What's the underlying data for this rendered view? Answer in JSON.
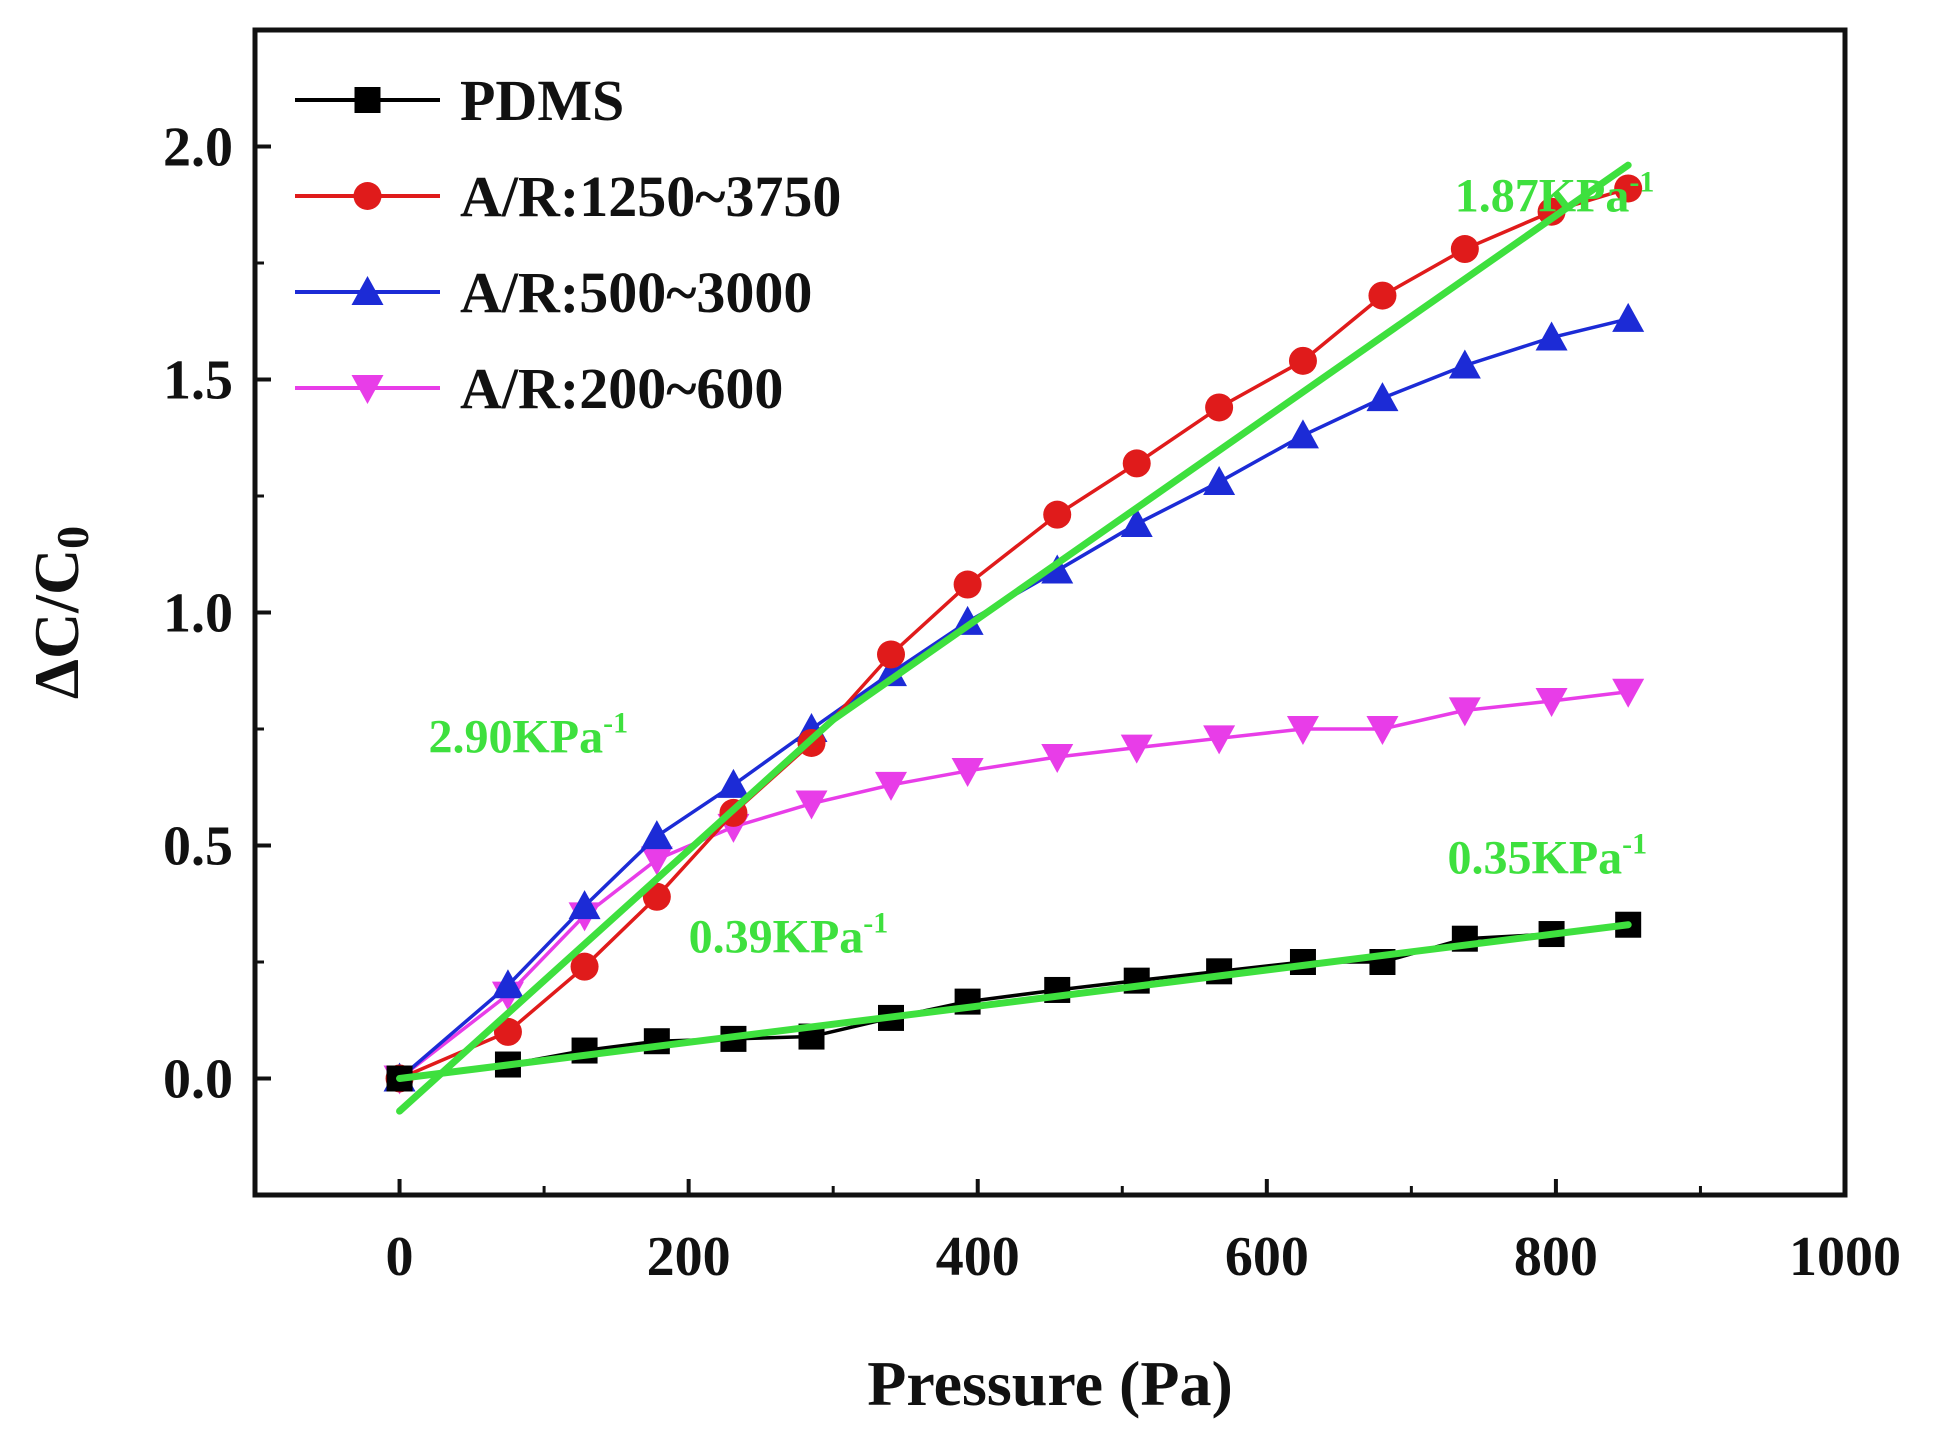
{
  "chart_data": {
    "type": "line",
    "title": "",
    "xlabel": "Pressure (Pa)",
    "ylabel_main": "ΔC/C",
    "ylabel_sub": "0",
    "xlim": [
      -100,
      1000
    ],
    "ylim": [
      -0.25,
      2.25
    ],
    "xticks": [
      0,
      200,
      400,
      600,
      800,
      1000
    ],
    "xtick_labels": [
      "0",
      "200",
      "400",
      "600",
      "800",
      "1000"
    ],
    "yticks": [
      0.0,
      0.5,
      1.0,
      1.5,
      2.0
    ],
    "ytick_labels": [
      "0.0",
      "0.5",
      "1.0",
      "1.5",
      "2.0"
    ],
    "grid": false,
    "legend_position": "top-left",
    "x": [
      0,
      75,
      128,
      178,
      231,
      285,
      340,
      393,
      455,
      510,
      567,
      625,
      680,
      737,
      797,
      850
    ],
    "series": [
      {
        "name": "PDMS",
        "color": "#000000",
        "marker": "square",
        "values": [
          0.0,
          0.03,
          0.06,
          0.08,
          0.085,
          0.09,
          0.13,
          0.165,
          0.19,
          0.21,
          0.23,
          0.25,
          0.25,
          0.3,
          0.31,
          0.33
        ]
      },
      {
        "name": "A/R:1250~3750",
        "color": "#e01b1b",
        "marker": "circle",
        "values": [
          0.0,
          0.1,
          0.24,
          0.39,
          0.57,
          0.72,
          0.91,
          1.06,
          1.21,
          1.32,
          1.44,
          1.54,
          1.68,
          1.78,
          1.86,
          1.91
        ]
      },
      {
        "name": "A/R:500~3000",
        "color": "#1c2bd6",
        "marker": "triangle-up",
        "values": [
          0.0,
          0.2,
          0.37,
          0.52,
          0.63,
          0.75,
          0.87,
          0.98,
          1.09,
          1.19,
          1.28,
          1.38,
          1.46,
          1.53,
          1.59,
          1.63
        ]
      },
      {
        "name": "A/R:200~600",
        "color": "#e83de8",
        "marker": "triangle-down",
        "values": [
          0.0,
          0.18,
          0.35,
          0.47,
          0.54,
          0.59,
          0.63,
          0.66,
          0.69,
          0.71,
          0.73,
          0.75,
          0.75,
          0.79,
          0.81,
          0.83
        ]
      }
    ],
    "fit_lines": [
      {
        "name": "fit-low-pressure",
        "color": "#3ee03e",
        "points": [
          [
            0,
            -0.07
          ],
          [
            300,
            0.77
          ]
        ]
      },
      {
        "name": "fit-high-pressure",
        "color": "#3ee03e",
        "points": [
          [
            300,
            0.77
          ],
          [
            850,
            1.96
          ]
        ]
      },
      {
        "name": "fit-pdms",
        "color": "#3ee03e",
        "points": [
          [
            0,
            0.0
          ],
          [
            850,
            0.33
          ]
        ]
      }
    ],
    "annotations": [
      {
        "text": "1.87KPa",
        "sup": "-1",
        "x": 730,
        "y": 1.86,
        "color": "#3ee03e"
      },
      {
        "text": "2.90KPa",
        "sup": "-1",
        "x": 20,
        "y": 0.7,
        "color": "#3ee03e"
      },
      {
        "text": "0.39KPa",
        "sup": "-1",
        "x": 200,
        "y": 0.27,
        "color": "#3ee03e"
      },
      {
        "text": "0.35KPa",
        "sup": "-1",
        "x": 725,
        "y": 0.44,
        "color": "#3ee03e"
      }
    ]
  }
}
